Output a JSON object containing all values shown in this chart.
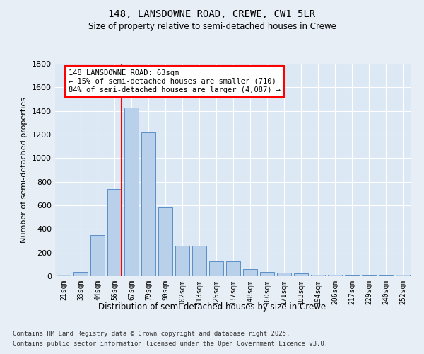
{
  "title1": "148, LANSDOWNE ROAD, CREWE, CW1 5LR",
  "title2": "Size of property relative to semi-detached houses in Crewe",
  "xlabel": "Distribution of semi-detached houses by size in Crewe",
  "ylabel": "Number of semi-detached properties",
  "categories": [
    "21sqm",
    "33sqm",
    "44sqm",
    "56sqm",
    "67sqm",
    "79sqm",
    "90sqm",
    "102sqm",
    "113sqm",
    "125sqm",
    "137sqm",
    "148sqm",
    "160sqm",
    "171sqm",
    "183sqm",
    "194sqm",
    "206sqm",
    "217sqm",
    "229sqm",
    "240sqm",
    "252sqm"
  ],
  "values": [
    15,
    35,
    350,
    740,
    1430,
    1220,
    580,
    258,
    258,
    125,
    125,
    63,
    35,
    30,
    25,
    10,
    10,
    5,
    5,
    5,
    10
  ],
  "bar_color": "#b8d0ea",
  "bar_edge_color": "#5b8fc9",
  "ylim": [
    0,
    1800
  ],
  "yticks": [
    0,
    200,
    400,
    600,
    800,
    1000,
    1200,
    1400,
    1600,
    1800
  ],
  "vline_bar_index": 3,
  "annotation_title": "148 LANSDOWNE ROAD: 63sqm",
  "annotation_line1": "← 15% of semi-detached houses are smaller (710)",
  "annotation_line2": "84% of semi-detached houses are larger (4,087) →",
  "footer1": "Contains HM Land Registry data © Crown copyright and database right 2025.",
  "footer2": "Contains public sector information licensed under the Open Government Licence v3.0.",
  "bg_color": "#e8eef5",
  "plot_bg_color": "#dce8f4"
}
